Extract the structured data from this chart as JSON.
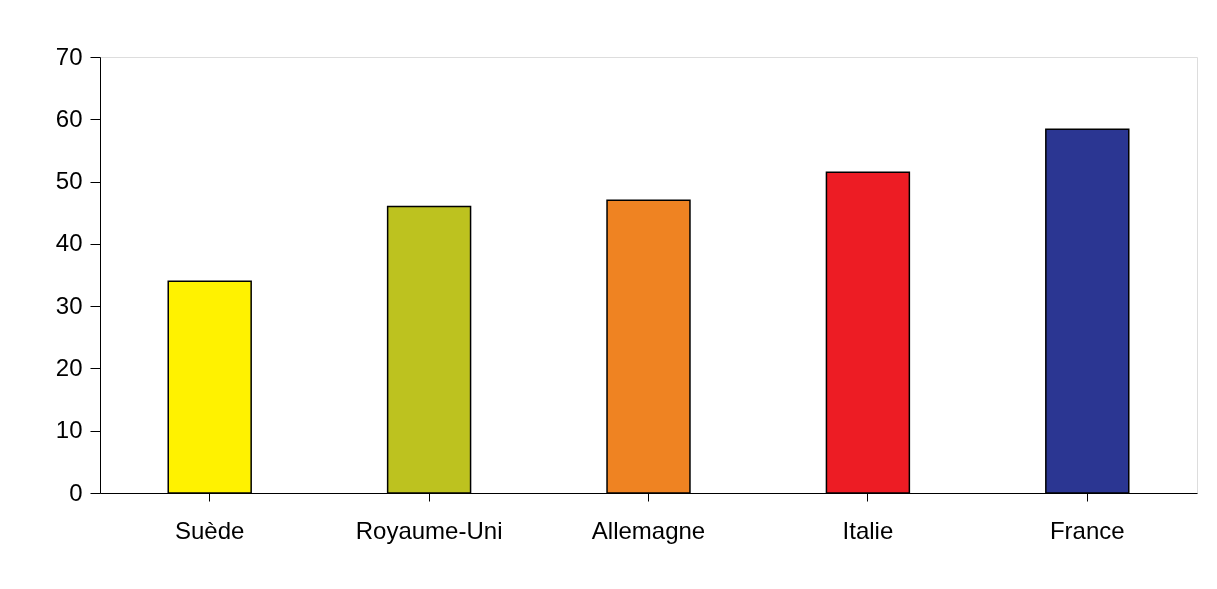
{
  "chart_data": {
    "type": "bar",
    "categories": [
      "Suède",
      "Royaume-Uni",
      "Allemagne",
      "Italie",
      "France"
    ],
    "values": [
      34,
      46,
      47,
      51.5,
      58.4
    ],
    "colors": [
      "#fff200",
      "#bdc21f",
      "#ef8322",
      "#ed1c24",
      "#2b3692"
    ],
    "ylim": [
      0,
      70
    ],
    "yticks": [
      0,
      10,
      20,
      30,
      40,
      50,
      60,
      70
    ],
    "grid": false
  }
}
